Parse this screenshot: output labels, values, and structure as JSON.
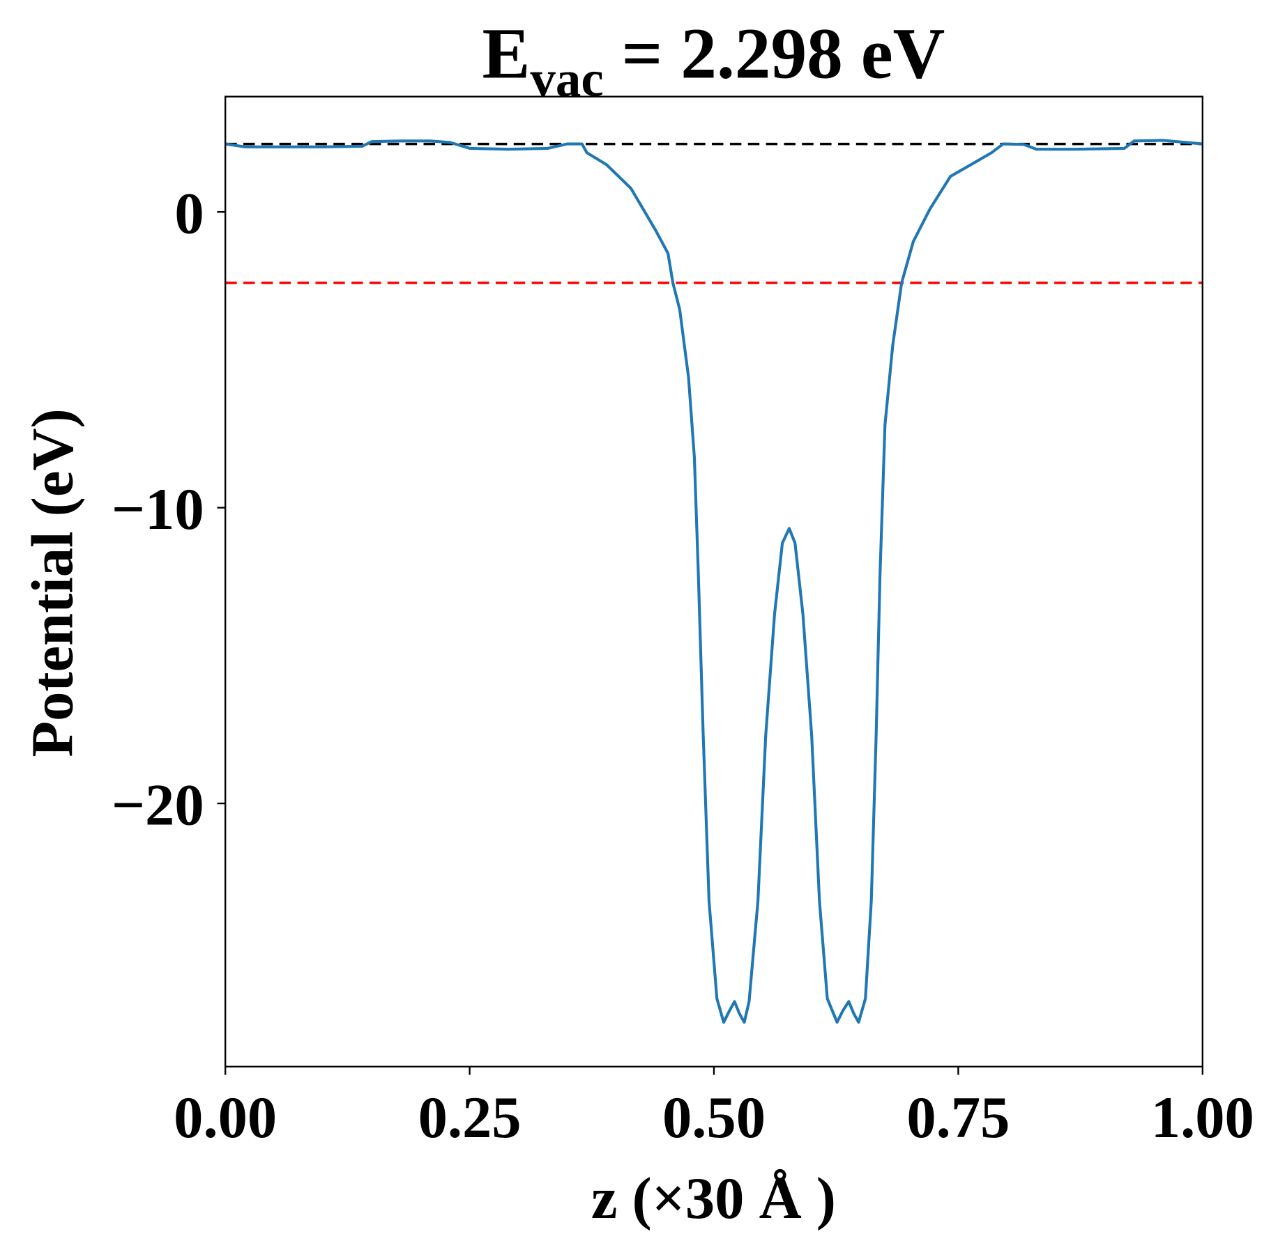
{
  "chart_data": {
    "type": "line",
    "title": "E",
    "title_subscript": "vac",
    "title_suffix": " = 2.298 eV",
    "xlabel": "z (×30 Å )",
    "ylabel": "Potential (eV)",
    "xlim": [
      0,
      1
    ],
    "ylim": [
      -28.9,
      3.9
    ],
    "grid": false,
    "x_ticks": [
      0,
      0.25,
      0.5,
      0.75,
      1
    ],
    "x_tick_labels": [
      "0.00",
      "0.25",
      "0.50",
      "0.75",
      "1.00"
    ],
    "y_ticks": [
      0,
      -10,
      -20
    ],
    "y_tick_labels": [
      "0",
      "−10",
      "−20"
    ],
    "reference_lines": [
      {
        "y": 2.298,
        "color": "#000000",
        "style": "dashed"
      },
      {
        "y": -2.4,
        "color": "#ff0000",
        "style": "dashed"
      }
    ],
    "series": [
      {
        "color": "#1f77b4",
        "x": [
          0,
          0.02,
          0.06,
          0.1,
          0.14,
          0.15,
          0.18,
          0.21,
          0.23,
          0.25,
          0.29,
          0.33,
          0.35,
          0.365,
          0.37,
          0.39,
          0.415,
          0.44,
          0.453,
          0.458,
          0.465,
          0.474,
          0.48,
          0.484,
          0.489,
          0.495,
          0.503,
          0.51,
          0.516,
          0.521,
          0.526,
          0.531,
          0.536,
          0.545,
          0.553,
          0.562,
          0.57,
          0.577,
          0.583,
          0.591,
          0.6,
          0.608,
          0.616,
          0.626,
          0.632,
          0.638,
          0.643,
          0.648,
          0.655,
          0.661,
          0.666,
          0.67,
          0.675,
          0.683,
          0.692,
          0.704,
          0.721,
          0.742,
          0.763,
          0.784,
          0.796,
          0.817,
          0.83,
          0.87,
          0.92,
          0.93,
          0.96,
          1.0
        ],
        "y": [
          2.3,
          2.2,
          2.2,
          2.2,
          2.22,
          2.38,
          2.4,
          2.4,
          2.35,
          2.15,
          2.12,
          2.15,
          2.3,
          2.3,
          2.0,
          1.6,
          0.8,
          -0.6,
          -1.4,
          -2.4,
          -3.3,
          -5.6,
          -8.3,
          -12.2,
          -17.7,
          -23.3,
          -26.6,
          -27.4,
          -27.0,
          -26.7,
          -27.1,
          -27.4,
          -26.7,
          -23.3,
          -17.7,
          -13.6,
          -11.2,
          -10.7,
          -11.2,
          -13.6,
          -17.7,
          -23.3,
          -26.6,
          -27.4,
          -27.0,
          -26.7,
          -27.1,
          -27.4,
          -26.6,
          -23.3,
          -17.7,
          -12.2,
          -7.2,
          -4.5,
          -2.4,
          -1.0,
          0.1,
          1.2,
          1.6,
          2.0,
          2.3,
          2.28,
          2.12,
          2.12,
          2.15,
          2.4,
          2.42,
          2.3
        ]
      }
    ]
  }
}
